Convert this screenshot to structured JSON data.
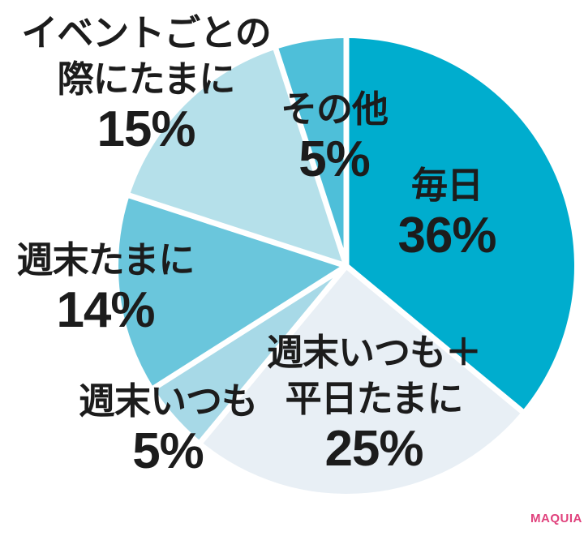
{
  "chart_data": {
    "type": "pie",
    "title": "",
    "direction": "clockwise",
    "start_angle": "top",
    "gap_color": "#ffffff",
    "text_color": "#1c1c1c",
    "slices": [
      {
        "label": "毎日",
        "lines": [
          "毎日"
        ],
        "value": 36,
        "pct": "36%",
        "color": "#00adce"
      },
      {
        "label": "週末いつも＋平日たまに",
        "lines": [
          "週末いつも＋",
          "平日たまに"
        ],
        "value": 25,
        "pct": "25%",
        "color": "#e8eff5"
      },
      {
        "label": "週末いつも",
        "lines": [
          "週末いつも"
        ],
        "value": 5,
        "pct": "5%",
        "color": "#a7d9e7"
      },
      {
        "label": "週末たまに",
        "lines": [
          "週末たまに"
        ],
        "value": 14,
        "pct": "14%",
        "color": "#6ac6dc"
      },
      {
        "label": "イベントごとの際にたまに",
        "lines": [
          "イベントごとの",
          "際にたまに"
        ],
        "value": 15,
        "pct": "15%",
        "color": "#b5e0ea"
      },
      {
        "label": "その他",
        "lines": [
          "その他"
        ],
        "value": 5,
        "pct": "5%",
        "color": "#4ebfd9"
      }
    ]
  },
  "branding": {
    "logo": "MAQUIA",
    "color": "#e0417c"
  }
}
